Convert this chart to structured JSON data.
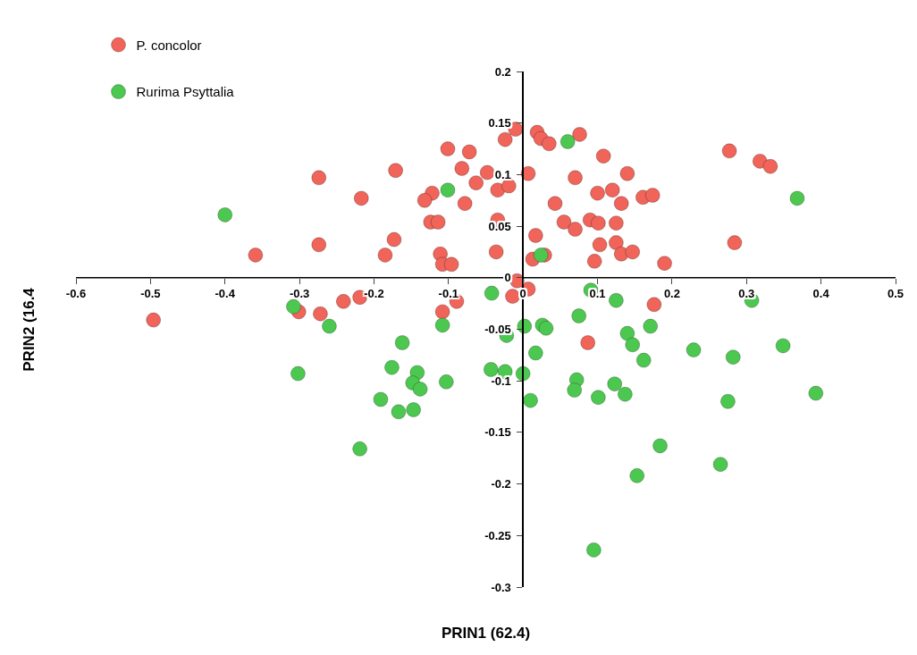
{
  "chart_data": {
    "type": "scatter",
    "xlabel": "PRIN1 (62.4)",
    "ylabel": "PRIN2 (16.4",
    "xlim": [
      -0.6,
      0.5
    ],
    "xticks": [
      -0.6,
      -0.5,
      -0.4,
      -0.3,
      -0.2,
      -0.1,
      0,
      0.1,
      0.2,
      0.3,
      0.4,
      0.5
    ],
    "ylim": [
      -0.3,
      0.2
    ],
    "yticks": [
      -0.3,
      -0.25,
      -0.2,
      -0.15,
      -0.1,
      -0.05,
      0,
      0.05,
      0.1,
      0.15,
      0.2
    ],
    "grid": false,
    "legend": "top left",
    "marker": "circle",
    "series": [
      {
        "name": "P. concolor",
        "color": "#f0645a",
        "x": [
          -0.496,
          -0.359,
          -0.274,
          -0.274,
          -0.217,
          -0.171,
          -0.173,
          -0.185,
          -0.101,
          -0.072,
          -0.082,
          -0.122,
          -0.132,
          -0.063,
          -0.048,
          -0.078,
          -0.124,
          -0.114,
          -0.111,
          -0.108,
          -0.096,
          -0.036,
          -0.034,
          -0.034,
          -0.019,
          -0.024,
          -0.01,
          -0.301,
          -0.272,
          -0.241,
          -0.219,
          -0.108,
          -0.089,
          -0.014,
          -0.008,
          0.007,
          0.019,
          0.024,
          0.035,
          0.076,
          0.108,
          0.277,
          0.318,
          0.332,
          0.007,
          0.07,
          0.14,
          0.043,
          0.1,
          0.12,
          0.132,
          0.161,
          0.174,
          0.055,
          0.07,
          0.09,
          0.101,
          0.125,
          0.017,
          0.013,
          0.029,
          0.103,
          0.125,
          0.132,
          0.147,
          0.096,
          0.19,
          0.284,
          0.176,
          0.087
        ],
        "values": [
          -0.041,
          0.022,
          0.097,
          0.032,
          0.077,
          0.104,
          0.037,
          0.022,
          0.125,
          0.122,
          0.106,
          0.082,
          0.075,
          0.092,
          0.102,
          0.072,
          0.054,
          0.054,
          0.023,
          0.013,
          0.013,
          0.025,
          0.056,
          0.085,
          0.089,
          0.134,
          0.144,
          -0.033,
          -0.035,
          -0.023,
          -0.019,
          -0.033,
          -0.023,
          -0.018,
          -0.003,
          -0.011,
          0.141,
          0.135,
          0.13,
          0.139,
          0.118,
          0.123,
          0.113,
          0.108,
          0.101,
          0.097,
          0.101,
          0.072,
          0.082,
          0.085,
          0.072,
          0.078,
          0.08,
          0.054,
          0.047,
          0.056,
          0.053,
          0.053,
          0.041,
          0.018,
          0.022,
          0.032,
          0.034,
          0.023,
          0.025,
          0.016,
          0.014,
          0.034,
          -0.026,
          -0.063
        ]
      },
      {
        "name": "Rurima Psyttalia",
        "color": "#4cc850",
        "x": [
          -0.4,
          -0.101,
          -0.308,
          -0.26,
          -0.162,
          -0.108,
          -0.042,
          -0.022,
          0.06,
          0.024,
          0.368,
          0.091,
          0.125,
          0.307,
          0.075,
          0.002,
          0.026,
          0.031,
          0.171,
          0.14,
          0.147,
          0.229,
          0.349,
          0.017,
          -0.302,
          -0.219,
          -0.176,
          -0.191,
          -0.167,
          -0.147,
          -0.142,
          -0.148,
          -0.138,
          -0.103,
          -0.043,
          -0.024,
          0.0,
          0.01,
          0.072,
          0.069,
          0.101,
          0.123,
          0.137,
          0.162,
          0.184,
          0.153,
          0.095,
          0.282,
          0.275,
          0.265,
          0.393
        ],
        "values": [
          0.061,
          0.085,
          -0.028,
          -0.047,
          -0.063,
          -0.046,
          -0.015,
          -0.056,
          0.132,
          0.022,
          0.077,
          -0.012,
          -0.022,
          -0.022,
          -0.037,
          -0.047,
          -0.046,
          -0.049,
          -0.047,
          -0.054,
          -0.065,
          -0.07,
          -0.066,
          -0.073,
          -0.093,
          -0.166,
          -0.087,
          -0.118,
          -0.13,
          -0.128,
          -0.092,
          -0.102,
          -0.108,
          -0.101,
          -0.089,
          -0.091,
          -0.093,
          -0.119,
          -0.099,
          -0.109,
          -0.116,
          -0.103,
          -0.113,
          -0.08,
          -0.163,
          -0.192,
          -0.264,
          -0.077,
          -0.12,
          -0.181,
          -0.112
        ]
      }
    ]
  }
}
